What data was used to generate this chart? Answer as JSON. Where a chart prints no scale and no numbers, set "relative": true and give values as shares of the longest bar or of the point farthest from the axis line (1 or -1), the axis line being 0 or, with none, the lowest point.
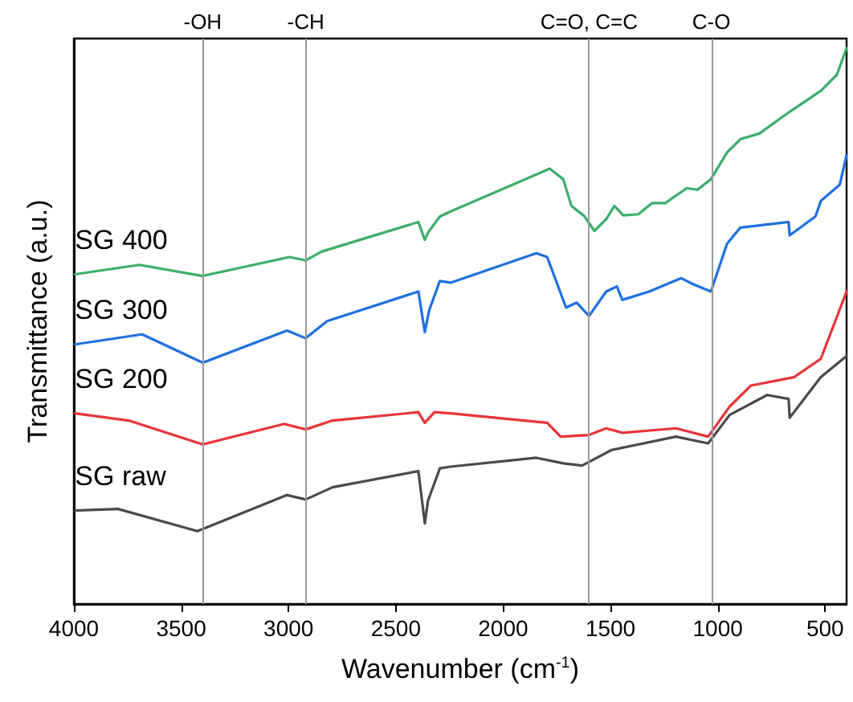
{
  "chart_data": {
    "type": "line",
    "relative": true,
    "xlabel": "Wavenumber (cm$^{-1}$)",
    "ylabel": "Transmittance (a.u.)",
    "xlim": [
      4000,
      400
    ],
    "xticks": [
      4000,
      3500,
      3000,
      2500,
      2000,
      1500,
      1000,
      500
    ],
    "grid": false,
    "legend": false,
    "marker": "none",
    "line_style": "solid",
    "ref_lines": [
      {
        "axis": "x",
        "value": 3400,
        "label": "-OH",
        "color": "#999999"
      },
      {
        "axis": "x",
        "value": 2920,
        "label": "-CH",
        "color": "#999999"
      },
      {
        "axis": "x",
        "value": 1600,
        "label": "C=O, C=C",
        "color": "#999999"
      },
      {
        "axis": "x",
        "value": 1030,
        "label": "C-O",
        "color": "#999999"
      }
    ],
    "series": [
      {
        "name": "SG 400",
        "color": "#3cae6a",
        "x": [
          3995,
          3695,
          3400,
          2995,
          2920,
          2845,
          2395,
          2365,
          2350,
          2295,
          2245,
          1783,
          1720,
          1682,
          1620,
          1575,
          1520,
          1482,
          1440,
          1370,
          1307,
          1245,
          1145,
          1095,
          1032,
          957,
          895,
          807,
          670,
          520,
          445,
          400
        ],
        "values": [
          0.593,
          0.61,
          0.59,
          0.624,
          0.618,
          0.634,
          0.687,
          0.655,
          0.668,
          0.697,
          0.706,
          0.783,
          0.764,
          0.716,
          0.697,
          0.671,
          0.692,
          0.716,
          0.699,
          0.701,
          0.721,
          0.721,
          0.748,
          0.745,
          0.764,
          0.812,
          0.836,
          0.846,
          0.884,
          0.923,
          0.952,
          1
        ]
      },
      {
        "name": "SG 300",
        "color": "#1f6fe0",
        "x": [
          3995,
          3682,
          3400,
          3007,
          2920,
          2820,
          2395,
          2365,
          2345,
          2295,
          2245,
          1845,
          1795,
          1707,
          1657,
          1600,
          1520,
          1470,
          1445,
          1320,
          1170,
          1120,
          1032,
          957,
          895,
          670,
          665,
          545,
          520,
          432,
          400
        ],
        "values": [
          0.467,
          0.485,
          0.434,
          0.492,
          0.478,
          0.509,
          0.562,
          0.489,
          0.528,
          0.581,
          0.578,
          0.631,
          0.624,
          0.533,
          0.542,
          0.518,
          0.562,
          0.571,
          0.547,
          0.562,
          0.586,
          0.576,
          0.562,
          0.648,
          0.677,
          0.687,
          0.663,
          0.697,
          0.725,
          0.754,
          0.807
        ]
      },
      {
        "name": "SG 200",
        "color": "#e8343a",
        "x": [
          3995,
          3745,
          3400,
          3020,
          2920,
          2795,
          2395,
          2365,
          2320,
          2245,
          1795,
          1732,
          1600,
          1520,
          1445,
          1195,
          1045,
          945,
          845,
          645,
          520,
          400
        ],
        "values": [
          0.343,
          0.33,
          0.287,
          0.324,
          0.314,
          0.33,
          0.345,
          0.326,
          0.345,
          0.343,
          0.326,
          0.301,
          0.304,
          0.316,
          0.308,
          0.316,
          0.301,
          0.355,
          0.393,
          0.408,
          0.441,
          0.562
        ]
      },
      {
        "name": "SG raw",
        "color": "#4a4a4a",
        "x": [
          3995,
          3795,
          3425,
          3007,
          2920,
          2795,
          2395,
          2365,
          2350,
          2295,
          2245,
          1845,
          1720,
          1632,
          1495,
          1195,
          1045,
          945,
          770,
          670,
          665,
          520,
          400
        ],
        "values": [
          0.168,
          0.171,
          0.131,
          0.196,
          0.188,
          0.21,
          0.239,
          0.145,
          0.186,
          0.244,
          0.247,
          0.263,
          0.253,
          0.249,
          0.277,
          0.301,
          0.289,
          0.34,
          0.376,
          0.369,
          0.335,
          0.408,
          0.446
        ]
      }
    ]
  }
}
